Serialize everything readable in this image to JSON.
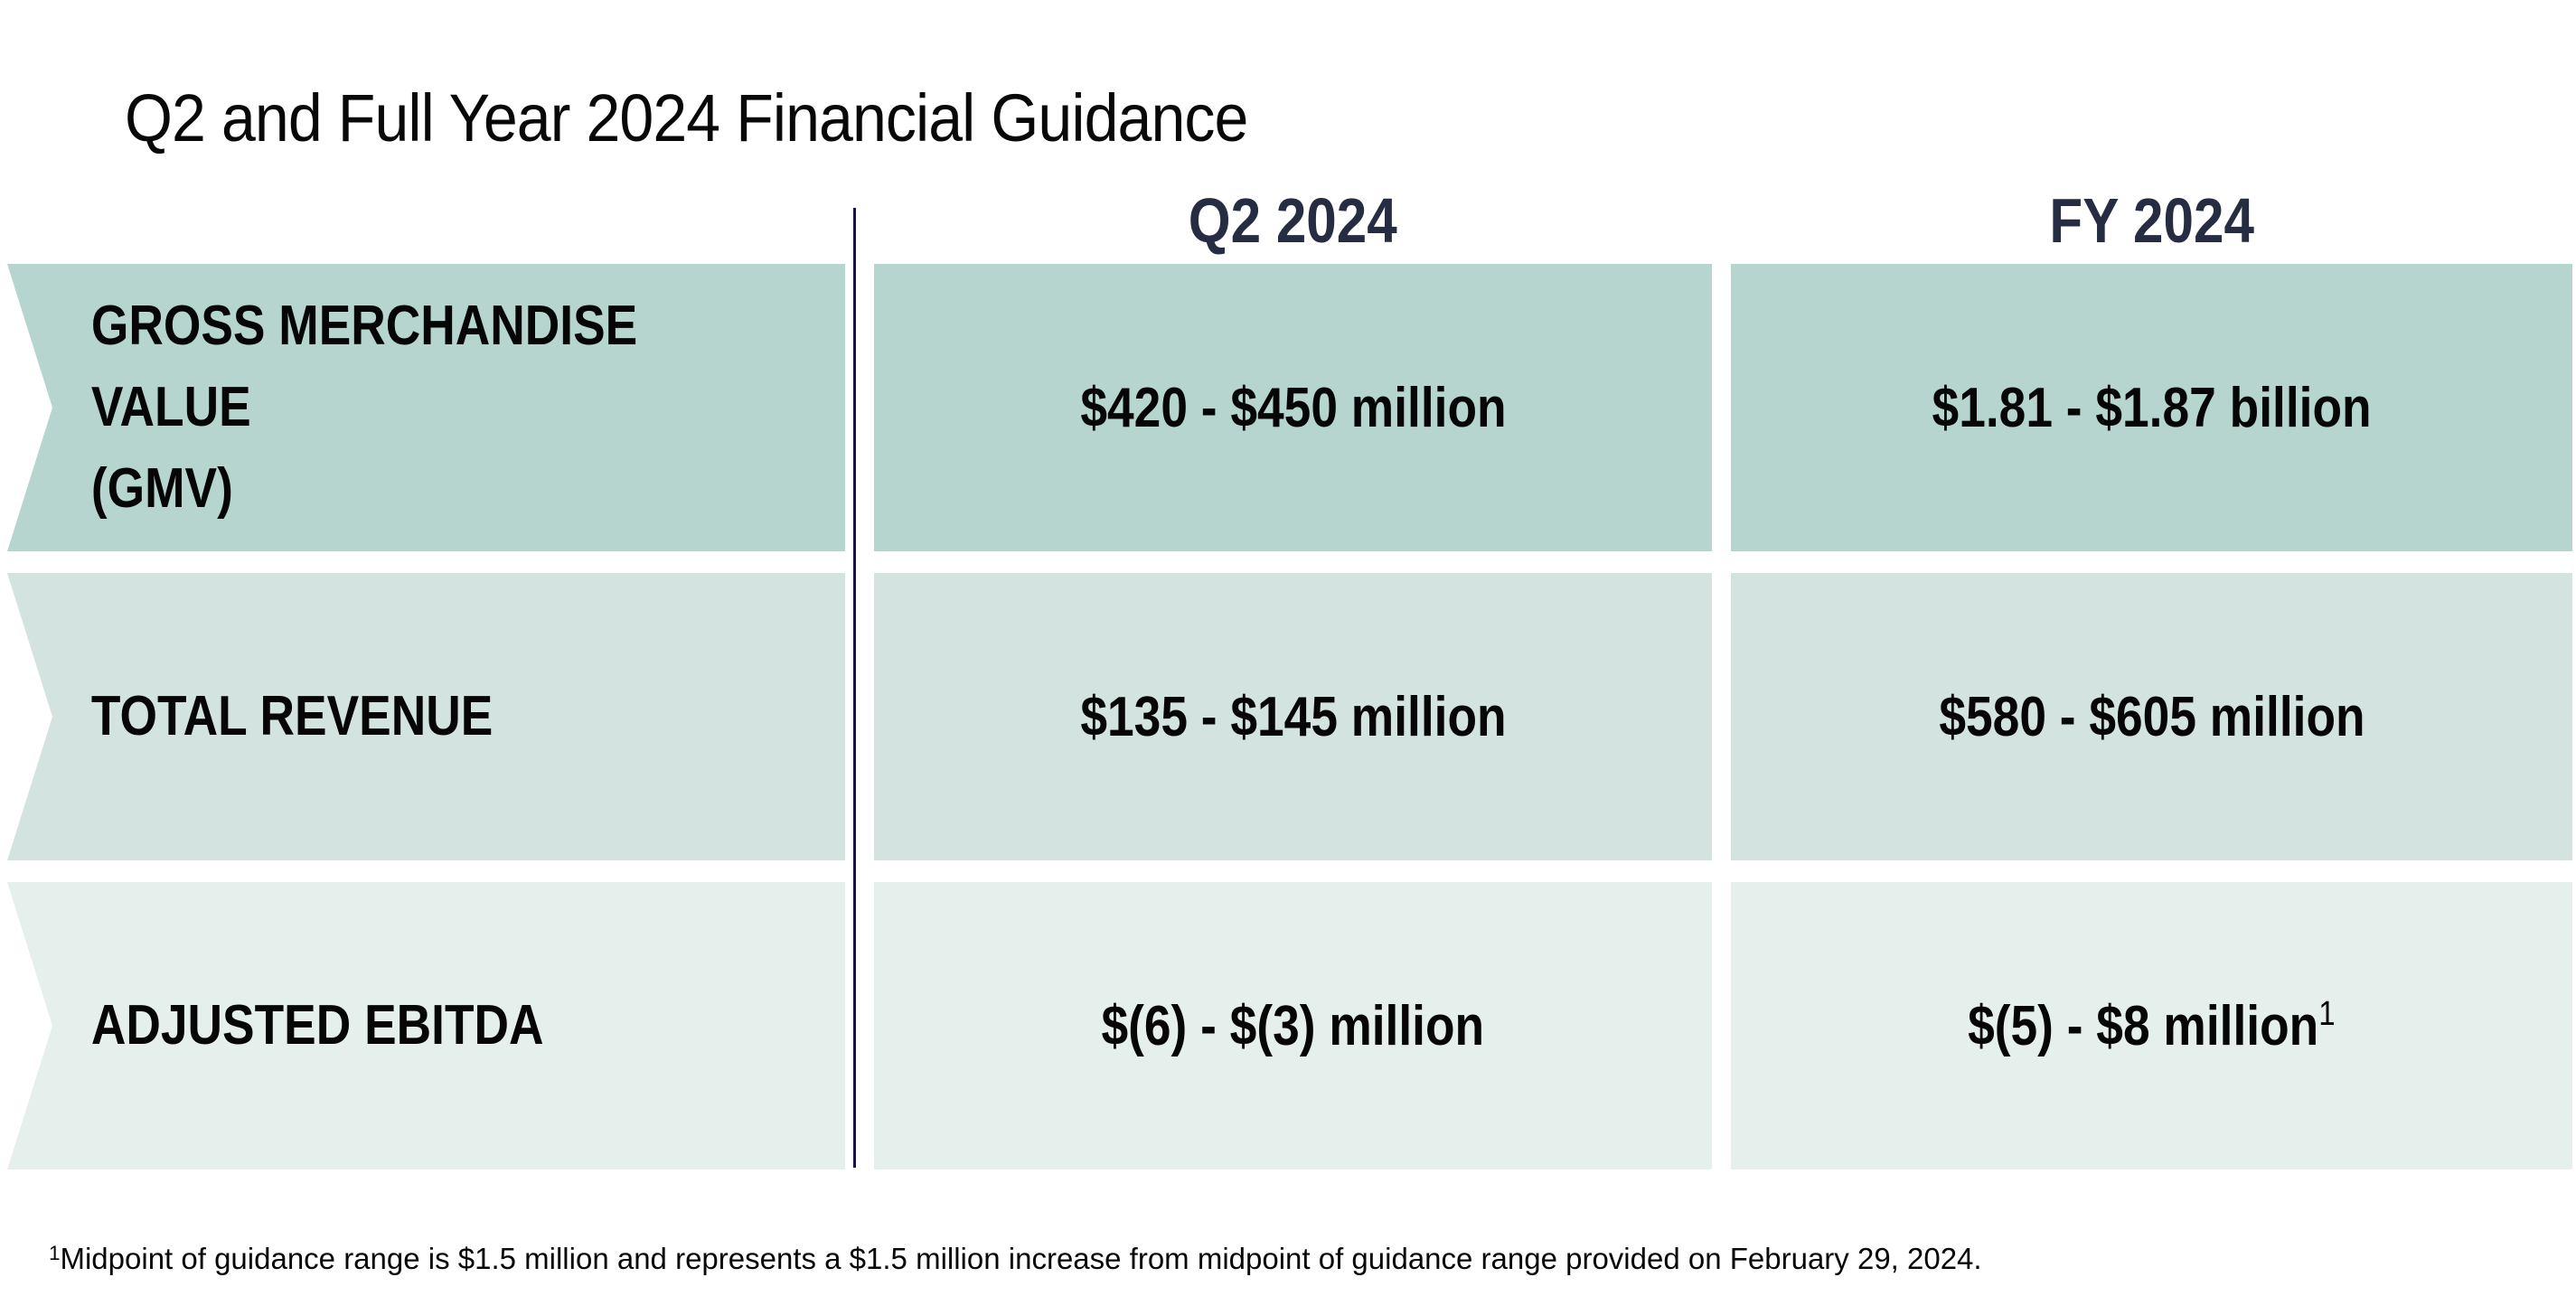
{
  "slide": {
    "title": "Q2 and Full Year 2024 Financial Guidance",
    "columns": [
      {
        "label": "Q2 2024"
      },
      {
        "label": "FY 2024"
      }
    ],
    "rows": [
      {
        "label": "GROSS MERCHANDISE VALUE\n(GMV)",
        "q2": "$420 - $450 million",
        "fy": "$1.81 - $1.87 billion",
        "fy_sup": ""
      },
      {
        "label": "TOTAL REVENUE",
        "q2": "$135 - $145 million",
        "fy": "$580 - $605 million",
        "fy_sup": ""
      },
      {
        "label": "ADJUSTED EBITDA",
        "q2": "$(6) - $(3) million",
        "fy": "$(5) - $8 million",
        "fy_sup": "1"
      }
    ],
    "footnote": {
      "sup": "1",
      "text": "Midpoint of guidance range is $1.5 million and represents a $1.5 million increase from midpoint of guidance range provided on February 29, 2024."
    },
    "colors": {
      "row1": "#b6d5cf",
      "row2": "#d2e3e0",
      "row3": "#e5efec",
      "header": "#262c42",
      "divider": "#1b1343",
      "text": "#060606"
    }
  }
}
